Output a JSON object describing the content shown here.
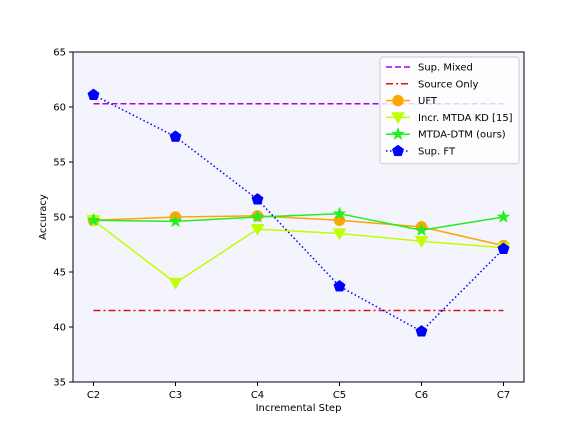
{
  "chart_data": {
    "type": "line",
    "title": "",
    "xlabel": "Incremental Step",
    "ylabel": "Accuracy",
    "categories": [
      "C2",
      "C3",
      "C4",
      "C5",
      "C6",
      "C7"
    ],
    "ylim": [
      35,
      65
    ],
    "yticks": [
      35,
      40,
      45,
      50,
      55,
      60,
      65
    ],
    "grid": false,
    "legend_position": "top-right",
    "background_color": "#f4f4fc",
    "series": [
      {
        "name": "Sup. Mixed",
        "values": [
          60.3,
          60.3,
          60.3,
          60.3,
          60.3,
          60.3
        ],
        "color": "#b000e0",
        "linestyle": "dashed",
        "marker": "none"
      },
      {
        "name": "Source Only",
        "values": [
          41.5,
          41.5,
          41.5,
          41.5,
          41.5,
          41.5
        ],
        "color": "#e01010",
        "linestyle": "dashdot",
        "marker": "none"
      },
      {
        "name": "UFT",
        "values": [
          49.7,
          50.0,
          50.1,
          49.7,
          49.1,
          47.4
        ],
        "color": "#ffa500",
        "linestyle": "solid",
        "marker": "circle"
      },
      {
        "name": "Incr. MTDA KD [15]",
        "values": [
          49.7,
          44.0,
          48.9,
          48.5,
          47.8,
          47.2
        ],
        "color": "#bfff00",
        "linestyle": "solid",
        "marker": "triangle-down"
      },
      {
        "name": "MTDA-DTM (ours)",
        "values": [
          49.7,
          49.6,
          50.0,
          50.3,
          48.8,
          50.0
        ],
        "color": "#22ee22",
        "linestyle": "solid",
        "marker": "star"
      },
      {
        "name": "Sup. FT",
        "values": [
          61.1,
          57.3,
          51.6,
          43.7,
          39.6,
          47.1
        ],
        "color": "#0000ff",
        "linestyle": "dotted",
        "marker": "pentagon"
      }
    ]
  }
}
